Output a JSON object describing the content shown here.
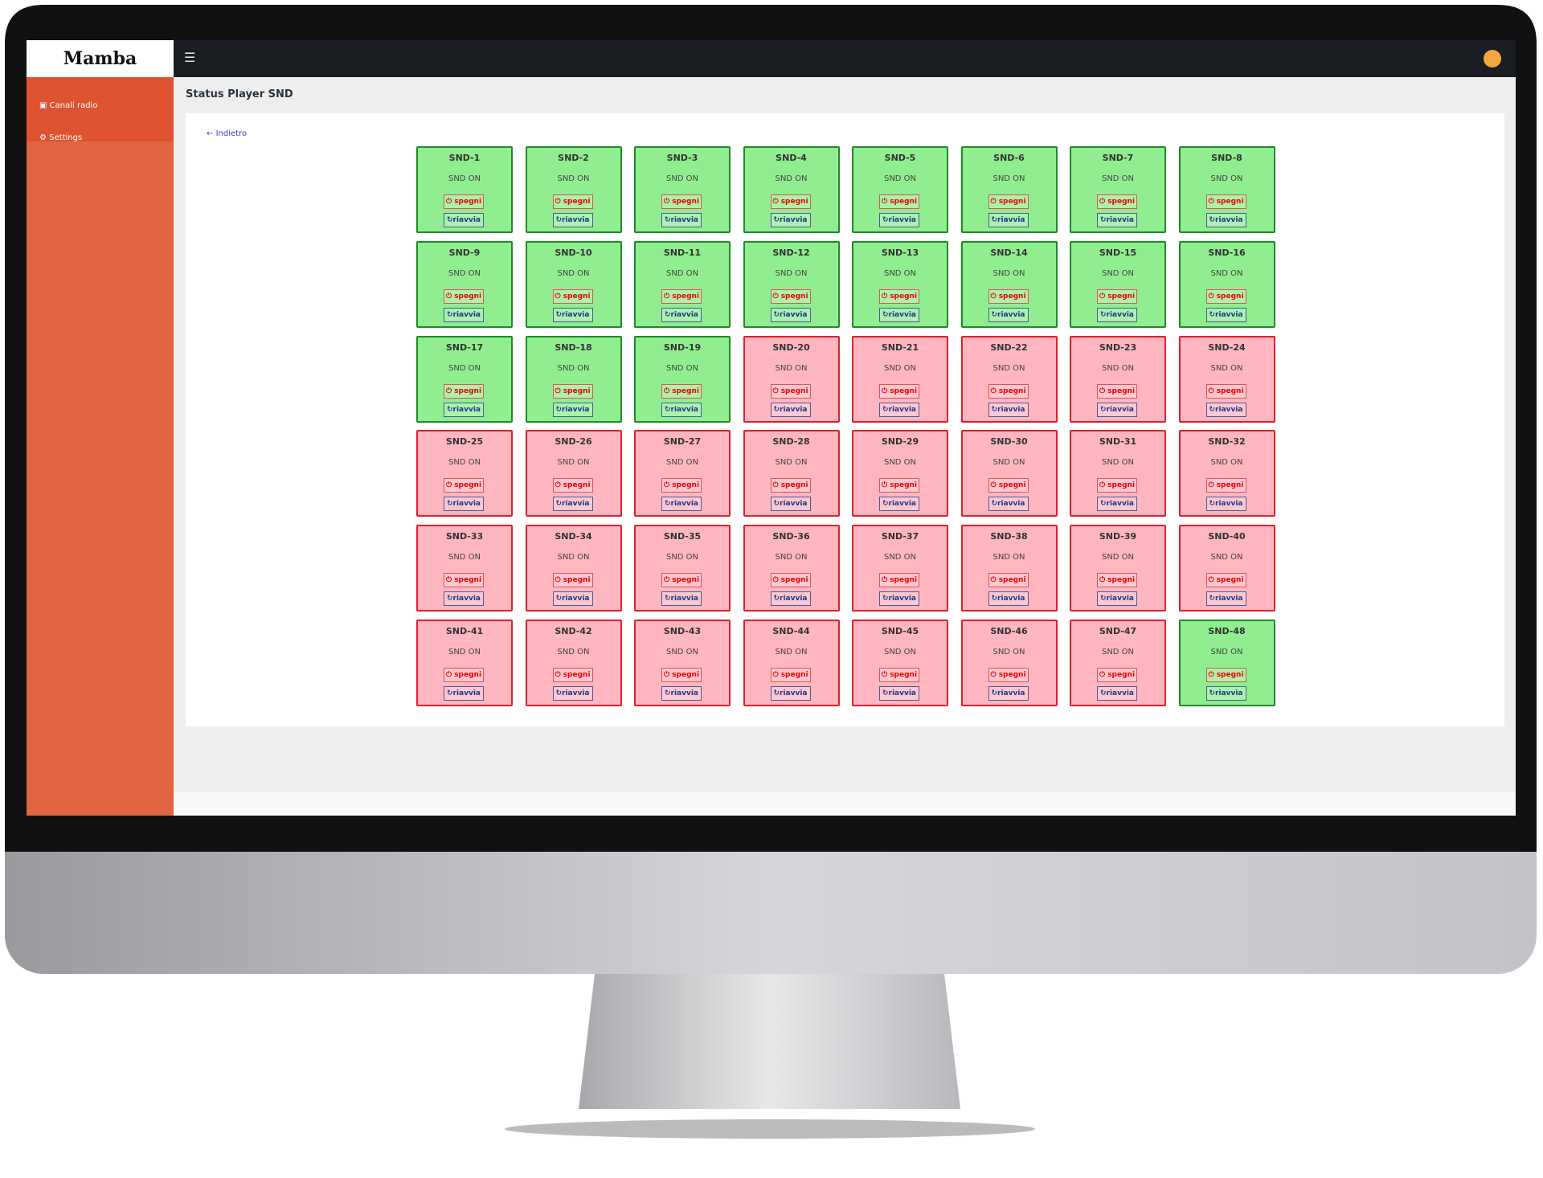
{
  "logo": "Mamba",
  "sidebar": {
    "items": [
      "Canali radio",
      "Settings"
    ]
  },
  "header": {
    "title": "Status Player SND"
  },
  "back_link": "Indietro",
  "buttons": {
    "off": "spegni",
    "restart": "riavvia"
  },
  "tiles": [
    {
      "name": "SND-1",
      "status": "SND ON",
      "state": "on"
    },
    {
      "name": "SND-2",
      "status": "SND ON",
      "state": "on"
    },
    {
      "name": "SND-3",
      "status": "SND ON",
      "state": "on"
    },
    {
      "name": "SND-4",
      "status": "SND ON",
      "state": "on"
    },
    {
      "name": "SND-5",
      "status": "SND ON",
      "state": "on"
    },
    {
      "name": "SND-6",
      "status": "SND ON",
      "state": "on"
    },
    {
      "name": "SND-7",
      "status": "SND ON",
      "state": "on"
    },
    {
      "name": "SND-8",
      "status": "SND ON",
      "state": "on"
    },
    {
      "name": "SND-9",
      "status": "SND ON",
      "state": "on"
    },
    {
      "name": "SND-10",
      "status": "SND ON",
      "state": "on"
    },
    {
      "name": "SND-11",
      "status": "SND ON",
      "state": "on"
    },
    {
      "name": "SND-12",
      "status": "SND ON",
      "state": "on"
    },
    {
      "name": "SND-13",
      "status": "SND ON",
      "state": "on"
    },
    {
      "name": "SND-14",
      "status": "SND ON",
      "state": "on"
    },
    {
      "name": "SND-15",
      "status": "SND ON",
      "state": "on"
    },
    {
      "name": "SND-16",
      "status": "SND ON",
      "state": "on"
    },
    {
      "name": "SND-17",
      "status": "SND ON",
      "state": "on"
    },
    {
      "name": "SND-18",
      "status": "SND ON",
      "state": "on"
    },
    {
      "name": "SND-19",
      "status": "SND ON",
      "state": "on"
    },
    {
      "name": "SND-20",
      "status": "SND ON",
      "state": "off"
    },
    {
      "name": "SND-21",
      "status": "SND ON",
      "state": "off"
    },
    {
      "name": "SND-22",
      "status": "SND ON",
      "state": "off"
    },
    {
      "name": "SND-23",
      "status": "SND ON",
      "state": "off"
    },
    {
      "name": "SND-24",
      "status": "SND ON",
      "state": "off"
    },
    {
      "name": "SND-25",
      "status": "SND ON",
      "state": "off"
    },
    {
      "name": "SND-26",
      "status": "SND ON",
      "state": "off"
    },
    {
      "name": "SND-27",
      "status": "SND ON",
      "state": "off"
    },
    {
      "name": "SND-28",
      "status": "SND ON",
      "state": "off"
    },
    {
      "name": "SND-29",
      "status": "SND ON",
      "state": "off"
    },
    {
      "name": "SND-30",
      "status": "SND ON",
      "state": "off"
    },
    {
      "name": "SND-31",
      "status": "SND ON",
      "state": "off"
    },
    {
      "name": "SND-32",
      "status": "SND ON",
      "state": "off"
    },
    {
      "name": "SND-33",
      "status": "SND ON",
      "state": "off"
    },
    {
      "name": "SND-34",
      "status": "SND ON",
      "state": "off"
    },
    {
      "name": "SND-35",
      "status": "SND ON",
      "state": "off"
    },
    {
      "name": "SND-36",
      "status": "SND ON",
      "state": "off"
    },
    {
      "name": "SND-37",
      "status": "SND ON",
      "state": "off"
    },
    {
      "name": "SND-38",
      "status": "SND ON",
      "state": "off"
    },
    {
      "name": "SND-39",
      "status": "SND ON",
      "state": "off"
    },
    {
      "name": "SND-40",
      "status": "SND ON",
      "state": "off"
    },
    {
      "name": "SND-41",
      "status": "SND ON",
      "state": "off"
    },
    {
      "name": "SND-42",
      "status": "SND ON",
      "state": "off"
    },
    {
      "name": "SND-43",
      "status": "SND ON",
      "state": "off"
    },
    {
      "name": "SND-44",
      "status": "SND ON",
      "state": "off"
    },
    {
      "name": "SND-45",
      "status": "SND ON",
      "state": "off"
    },
    {
      "name": "SND-46",
      "status": "SND ON",
      "state": "off"
    },
    {
      "name": "SND-47",
      "status": "SND ON",
      "state": "off"
    },
    {
      "name": "SND-48",
      "status": "SND ON",
      "state": "on"
    }
  ]
}
